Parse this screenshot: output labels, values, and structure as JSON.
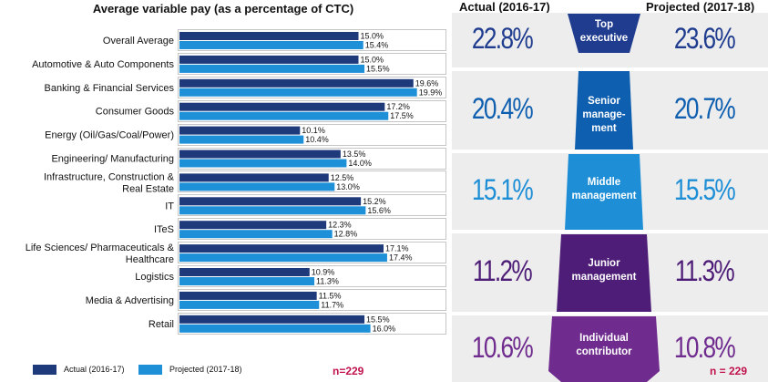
{
  "chart_data": [
    {
      "type": "bar",
      "orientation": "horizontal",
      "title": "Average variable pay (as a percentage of CTC)",
      "categories": [
        "Overall Average",
        "Automotive & Auto Components",
        "Banking & Financial Services",
        "Consumer Goods",
        "Energy (Oil/Gas/Coal/Power)",
        "Engineering/ Manufacturing",
        "Infrastructure, Construction & Real Estate",
        "IT",
        "ITeS",
        "Life Sciences/ Pharmaceuticals & Healthcare",
        "Logistics",
        "Media & Advertising",
        "Retail"
      ],
      "category_lines": [
        [
          "Overall Average"
        ],
        [
          "Automotive & Auto Components"
        ],
        [
          "Banking & Financial Services"
        ],
        [
          "Consumer Goods"
        ],
        [
          "Energy (Oil/Gas/Coal/Power)"
        ],
        [
          "Engineering/ Manufacturing"
        ],
        [
          "Infrastructure, Construction &",
          "Real Estate"
        ],
        [
          "IT"
        ],
        [
          "ITeS"
        ],
        [
          "Life Sciences/ Pharmaceuticals &",
          "Healthcare"
        ],
        [
          "Logistics"
        ],
        [
          "Media & Advertising"
        ],
        [
          "Retail"
        ]
      ],
      "series": [
        {
          "name": "Actual (2016-17)",
          "color": "#1f3a7a",
          "values": [
            15.0,
            15.0,
            19.6,
            17.2,
            10.1,
            13.5,
            12.5,
            15.2,
            12.3,
            17.1,
            10.9,
            11.5,
            15.5
          ],
          "labels": [
            "15.0%",
            "15.0%",
            "19.6%",
            "17.2%",
            "10.1%",
            "13.5%",
            "12.5%",
            "15.2%",
            "12.3%",
            "17.1%",
            "10.9%",
            "11.5%",
            "15.5%"
          ]
        },
        {
          "name": "Projected (2017-18)",
          "color": "#1e90d8",
          "values": [
            15.4,
            15.5,
            19.9,
            17.5,
            10.4,
            14.0,
            13.0,
            15.6,
            12.8,
            17.4,
            11.3,
            11.7,
            16.0
          ],
          "labels": [
            "15.4%",
            "15.5%",
            "19.9%",
            "17.5%",
            "10.4%",
            "14.0%",
            "13.0%",
            "15.6%",
            "12.8%",
            "17.4%",
            "11.3%",
            "11.7%",
            "16.0%"
          ]
        }
      ],
      "legend": [
        "Actual (2016-17)",
        "Projected (2017-18)"
      ],
      "legend_position": "bottom",
      "xlim": [
        0,
        20
      ],
      "grid": false,
      "note": "n=229"
    },
    {
      "type": "table",
      "columns": [
        "Actual (2016-17)",
        "Projected (2017-18)"
      ],
      "rows": [
        {
          "level": "Top executive",
          "level_lines": [
            "Top",
            "executive"
          ],
          "actual": "22.8%",
          "projected": "23.6%",
          "color": "#1f3c8f"
        },
        {
          "level": "Senior management",
          "level_lines": [
            "Senior",
            "manage-",
            "ment"
          ],
          "actual": "20.4%",
          "projected": "20.7%",
          "color": "#0e5fb0"
        },
        {
          "level": "Middle management",
          "level_lines": [
            "Middle",
            "management"
          ],
          "actual": "15.1%",
          "projected": "15.5%",
          "color": "#1e8fd6"
        },
        {
          "level": "Junior management",
          "level_lines": [
            "Junior",
            "management"
          ],
          "actual": "11.2%",
          "projected": "11.3%",
          "color": "#4e1d78"
        },
        {
          "level": "Individual contributor",
          "level_lines": [
            "Individual",
            "contributor"
          ],
          "actual": "10.6%",
          "projected": "10.8%",
          "color": "#6f2b8e"
        }
      ],
      "note": "n = 229",
      "note_color": "#c0134e"
    }
  ]
}
